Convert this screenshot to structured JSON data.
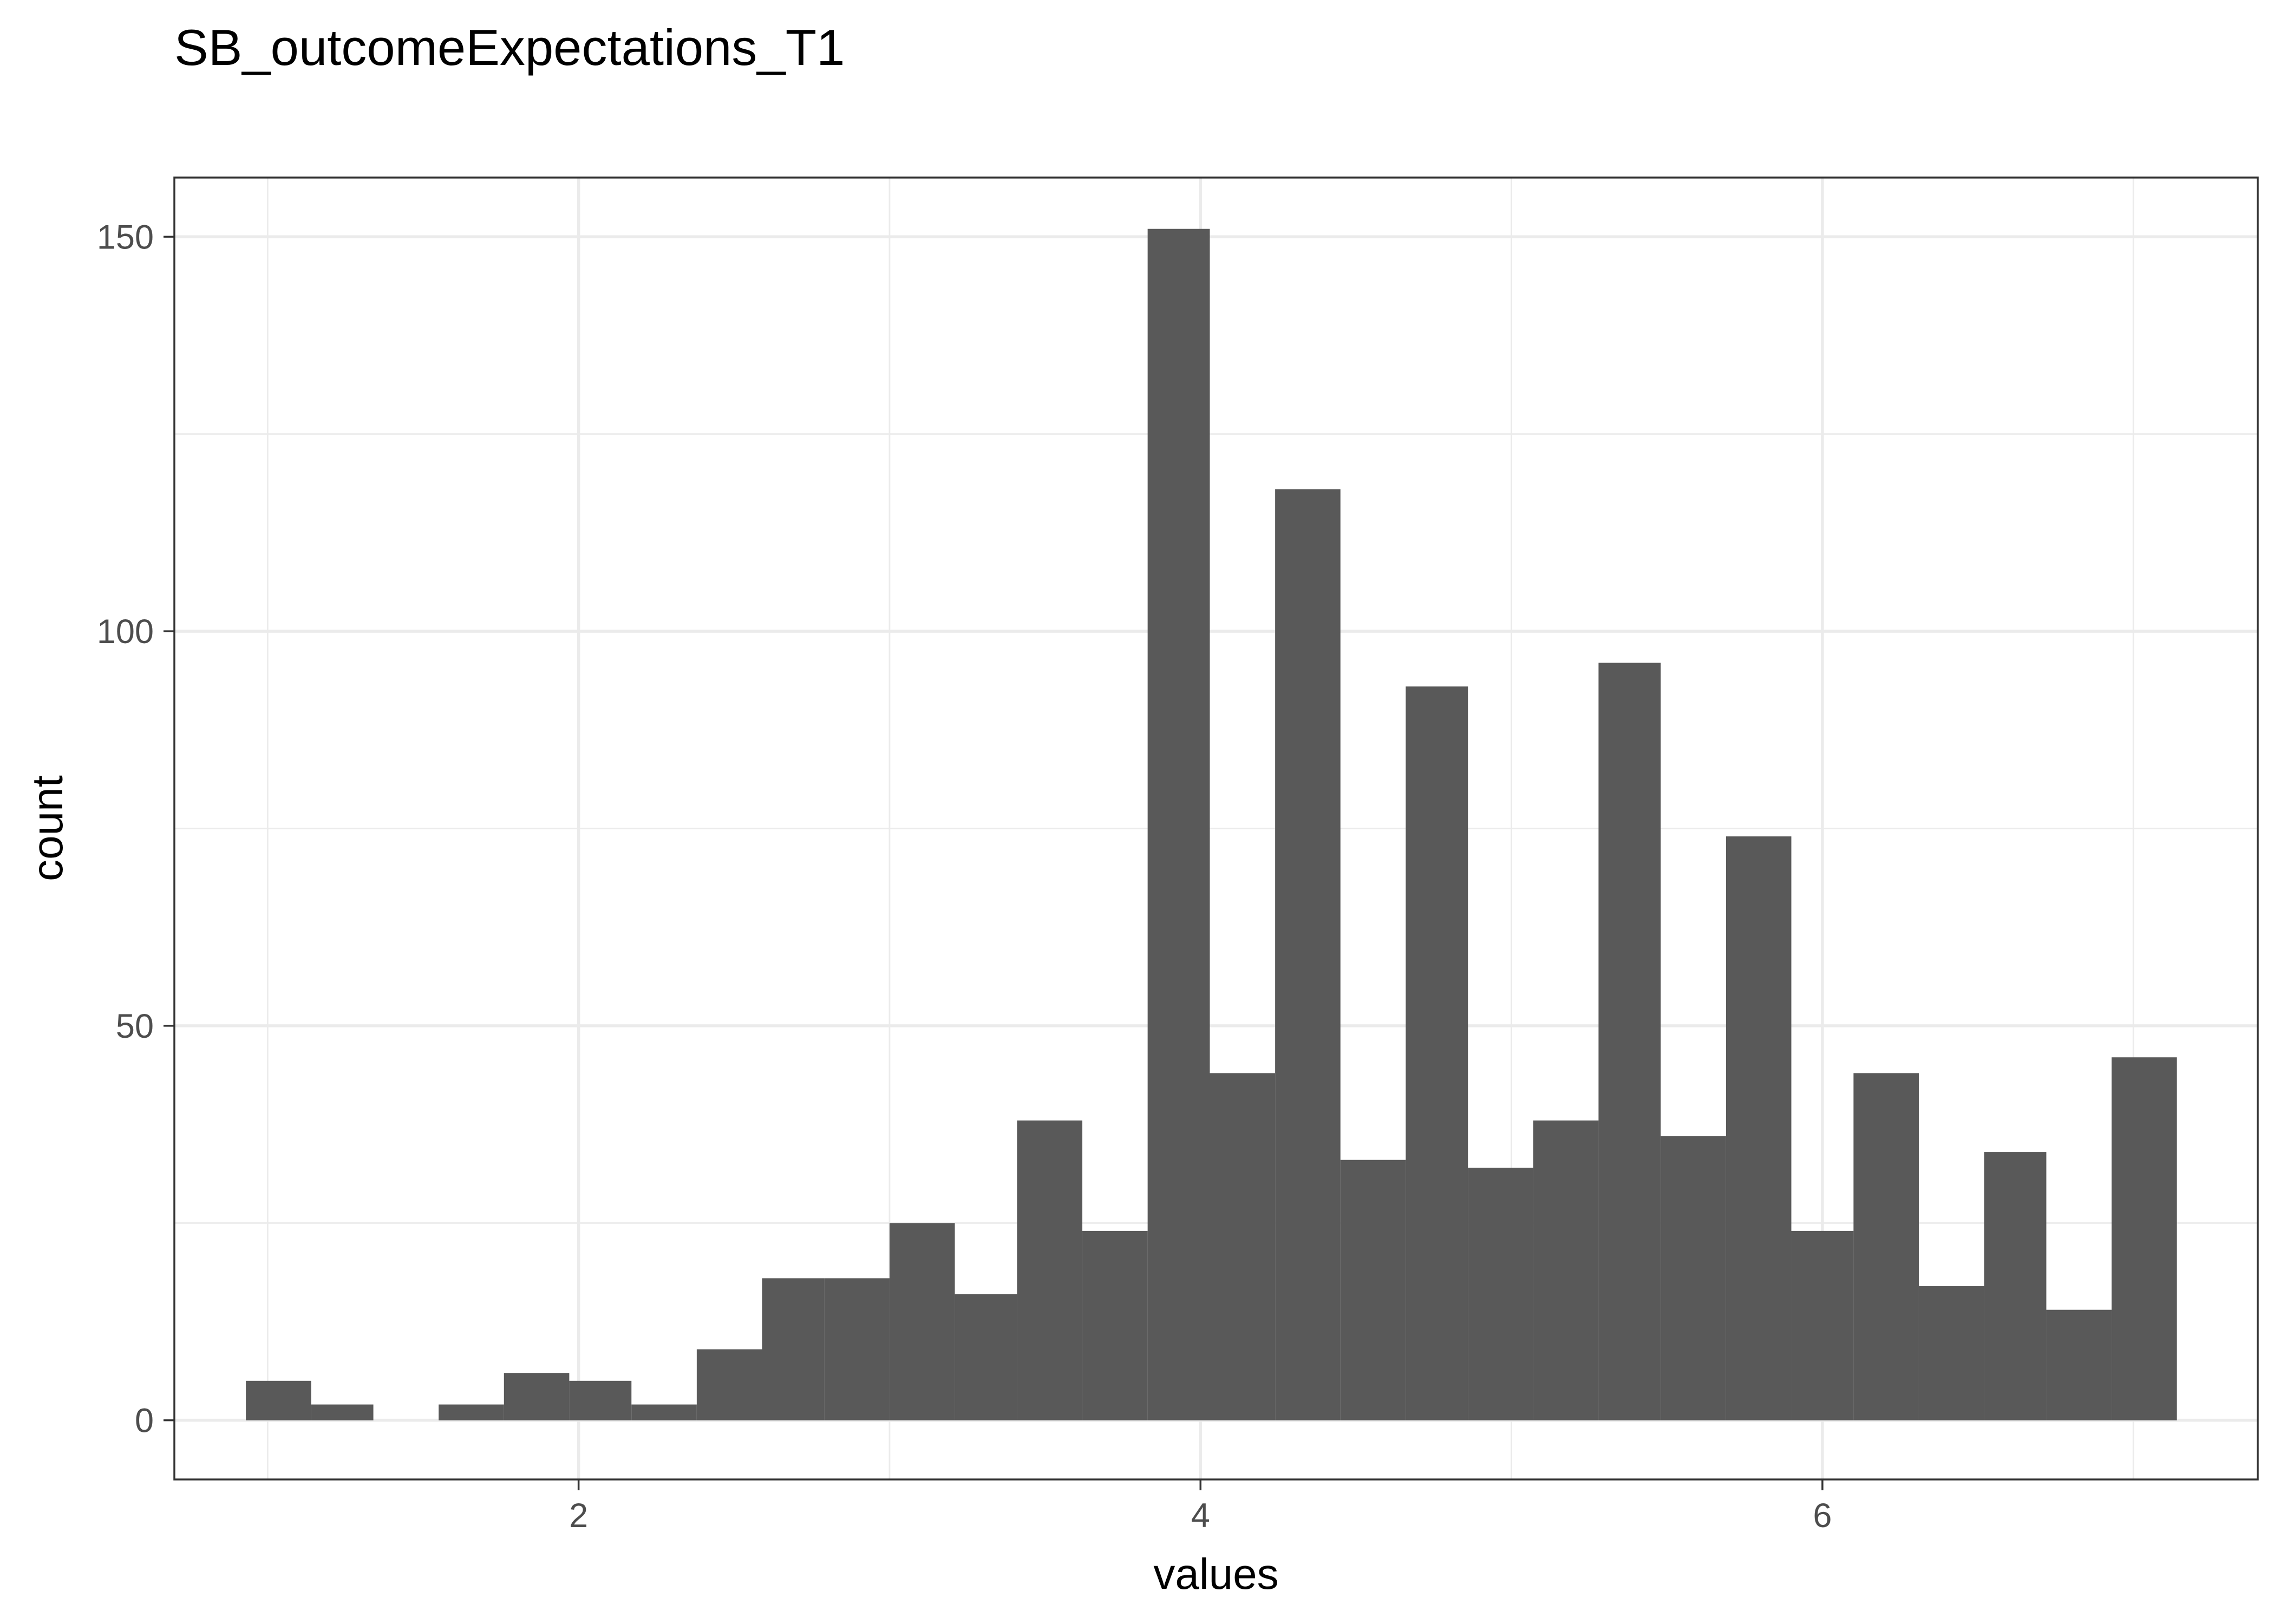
{
  "chart_data": {
    "type": "bar",
    "title": "SB_outcomeExpectations_T1",
    "xlabel": "values",
    "ylabel": "count",
    "xlim": [
      0.7,
      7.4
    ],
    "ylim": [
      -7.5,
      157.5
    ],
    "x_ticks": [
      2,
      4,
      6
    ],
    "x_tick_labels": [
      "2",
      "4",
      "6"
    ],
    "x_minor_ticks": [
      1,
      3,
      5,
      7
    ],
    "y_ticks": [
      0,
      50,
      100,
      150
    ],
    "y_tick_labels": [
      "0",
      "50",
      "100",
      "150"
    ],
    "y_minor_ticks": [
      25,
      75,
      125
    ],
    "grid": true,
    "bar_color": "#595959",
    "bins": [
      {
        "x0": 0.93,
        "x1": 1.14,
        "count": 5
      },
      {
        "x0": 1.14,
        "x1": 1.34,
        "count": 2
      },
      {
        "x0": 1.34,
        "x1": 1.55,
        "count": 0
      },
      {
        "x0": 1.55,
        "x1": 1.76,
        "count": 2
      },
      {
        "x0": 1.76,
        "x1": 1.97,
        "count": 6
      },
      {
        "x0": 1.97,
        "x1": 2.17,
        "count": 5
      },
      {
        "x0": 2.17,
        "x1": 2.38,
        "count": 2
      },
      {
        "x0": 2.38,
        "x1": 2.59,
        "count": 9
      },
      {
        "x0": 2.59,
        "x1": 2.79,
        "count": 18
      },
      {
        "x0": 2.79,
        "x1": 3.0,
        "count": 18
      },
      {
        "x0": 3.0,
        "x1": 3.21,
        "count": 25
      },
      {
        "x0": 3.21,
        "x1": 3.41,
        "count": 16
      },
      {
        "x0": 3.41,
        "x1": 3.62,
        "count": 38
      },
      {
        "x0": 3.62,
        "x1": 3.83,
        "count": 24
      },
      {
        "x0": 3.83,
        "x1": 4.03,
        "count": 151
      },
      {
        "x0": 4.03,
        "x1": 4.24,
        "count": 44
      },
      {
        "x0": 4.24,
        "x1": 4.45,
        "count": 118
      },
      {
        "x0": 4.45,
        "x1": 4.66,
        "count": 33
      },
      {
        "x0": 4.66,
        "x1": 4.86,
        "count": 93
      },
      {
        "x0": 4.86,
        "x1": 5.07,
        "count": 32
      },
      {
        "x0": 5.07,
        "x1": 5.28,
        "count": 38
      },
      {
        "x0": 5.28,
        "x1": 5.48,
        "count": 96
      },
      {
        "x0": 5.48,
        "x1": 5.69,
        "count": 36
      },
      {
        "x0": 5.69,
        "x1": 5.9,
        "count": 74
      },
      {
        "x0": 5.9,
        "x1": 6.1,
        "count": 24
      },
      {
        "x0": 6.1,
        "x1": 6.31,
        "count": 44
      },
      {
        "x0": 6.31,
        "x1": 6.52,
        "count": 17
      },
      {
        "x0": 6.52,
        "x1": 6.72,
        "count": 34
      },
      {
        "x0": 6.72,
        "x1": 6.93,
        "count": 14
      },
      {
        "x0": 6.93,
        "x1": 7.14,
        "count": 46
      }
    ]
  }
}
